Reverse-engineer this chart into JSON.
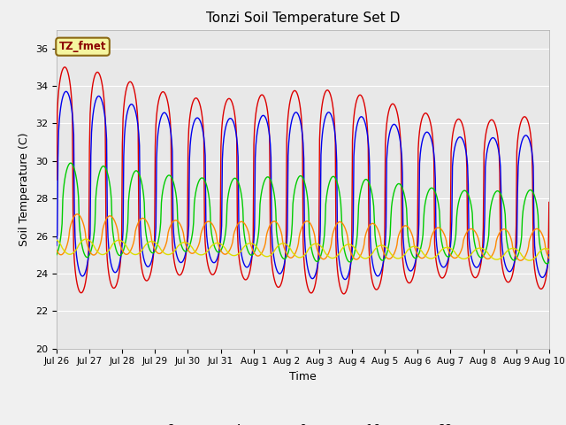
{
  "title": "Tonzi Soil Temperature Set D",
  "xlabel": "Time",
  "ylabel": "Soil Temperature (C)",
  "annotation": "TZ_fmet",
  "ylim": [
    20,
    37
  ],
  "yticks": [
    20,
    22,
    24,
    26,
    28,
    30,
    32,
    34,
    36
  ],
  "xtick_labels": [
    "Jul 26",
    "Jul 27",
    "Jul 28",
    "Jul 29",
    "Jul 30",
    "Jul 31",
    "Aug 1",
    "Aug 2",
    "Aug 3",
    "Aug 4",
    "Aug 5",
    "Aug 6",
    "Aug 7",
    "Aug 8",
    "Aug 9",
    "Aug 10"
  ],
  "series_colors": {
    "-2cm": "#dd0000",
    "-4cm": "#0000ee",
    "-8cm": "#00cc00",
    "-16cm": "#ff8800",
    "-32cm": "#dddd00"
  },
  "background_color": "#e8e8e8",
  "fig_facecolor": "#f0f0f0",
  "title_fontsize": 11,
  "axis_fontsize": 9,
  "tick_fontsize": 8
}
